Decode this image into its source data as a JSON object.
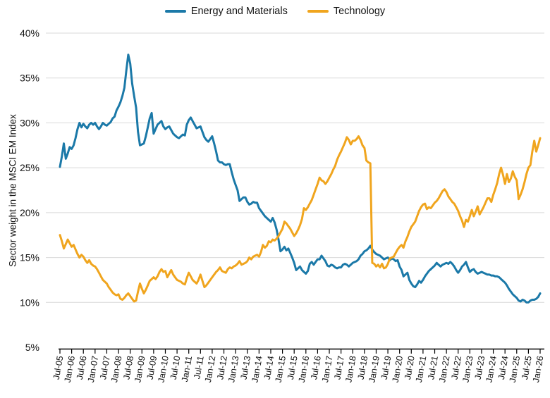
{
  "chart_data": {
    "type": "line",
    "title": "",
    "ylabel": "Sector weight in the MSCI EM Index",
    "ylim": [
      5,
      40
    ],
    "grid": "horizontal-only",
    "legend_position": "top-center",
    "y_tick_labels": [
      "5%",
      "10%",
      "15%",
      "20%",
      "25%",
      "30%",
      "35%",
      "40%"
    ],
    "x_start": "Jul-05",
    "x_end": "Jan-26",
    "x_frequency": "monthly",
    "x_tick_every_months": 6,
    "x_tick_labels": [
      "Jul-05",
      "Jan-06",
      "Jul-06",
      "Jan-07",
      "Jul-07",
      "Jan-08",
      "Jul-08",
      "Jan-09",
      "Jul-09",
      "Jan-10",
      "Jul-10",
      "Jan-11",
      "Jul-11",
      "Jan-12",
      "Jul-12",
      "Jan-13",
      "Jul-13",
      "Jan-14",
      "Jul-14",
      "Jan-15",
      "Jul-15",
      "Jan-16",
      "Jul-16",
      "Jan-17",
      "Jul-17",
      "Jan-18",
      "Jul-18",
      "Jan-19",
      "Jul-19",
      "Jan-20",
      "Jul-20",
      "Jan-21",
      "Jul-21",
      "Jan-22",
      "Jul-22",
      "Jan-23",
      "Jul-23",
      "Jan-24",
      "Jul-24",
      "Jan-25",
      "Jul-25",
      "Jan-26"
    ],
    "series": [
      {
        "name": "Energy and Materials",
        "color": "#1b79a8",
        "values": [
          25.1,
          26.3,
          27.7,
          26.0,
          26.6,
          27.3,
          27.1,
          27.5,
          28.3,
          29.3,
          30.0,
          29.5,
          29.9,
          29.6,
          29.4,
          29.8,
          30.0,
          29.8,
          30.0,
          29.6,
          29.3,
          29.6,
          30.0,
          29.8,
          29.7,
          29.9,
          30.1,
          30.5,
          30.7,
          31.4,
          31.8,
          32.3,
          33.0,
          33.9,
          35.8,
          37.6,
          36.6,
          34.4,
          33.0,
          31.7,
          29.0,
          27.5,
          27.6,
          27.7,
          28.5,
          29.5,
          30.5,
          31.1,
          28.8,
          29.3,
          29.8,
          30.0,
          30.2,
          29.6,
          29.3,
          29.5,
          29.6,
          29.2,
          28.8,
          28.6,
          28.4,
          28.3,
          28.5,
          28.7,
          28.6,
          29.8,
          30.3,
          30.6,
          30.2,
          29.8,
          29.4,
          29.5,
          29.6,
          29.0,
          28.4,
          28.1,
          27.9,
          28.2,
          28.5,
          27.7,
          26.8,
          25.8,
          25.6,
          25.6,
          25.4,
          25.3,
          25.4,
          25.4,
          24.5,
          23.7,
          23.1,
          22.5,
          21.3,
          21.5,
          21.7,
          21.7,
          21.2,
          20.9,
          21.0,
          21.2,
          21.1,
          21.1,
          20.5,
          20.2,
          19.9,
          19.6,
          19.4,
          19.2,
          19.0,
          19.4,
          18.9,
          18.1,
          17.0,
          15.7,
          15.9,
          16.2,
          15.8,
          16.0,
          15.5,
          15.0,
          14.4,
          13.6,
          13.8,
          14.0,
          13.6,
          13.4,
          13.2,
          13.5,
          14.3,
          14.5,
          14.2,
          14.5,
          14.8,
          14.8,
          15.2,
          14.9,
          14.6,
          14.1,
          14.0,
          14.2,
          14.1,
          13.9,
          13.8,
          13.9,
          13.9,
          14.2,
          14.3,
          14.2,
          14.0,
          14.2,
          14.4,
          14.5,
          14.6,
          14.8,
          15.2,
          15.4,
          15.7,
          15.8,
          16.0,
          16.3,
          15.9,
          15.6,
          15.4,
          15.3,
          15.2,
          15.0,
          14.8,
          14.9,
          15.0,
          14.7,
          14.9,
          14.8,
          14.6,
          14.7,
          14.0,
          13.6,
          12.9,
          13.1,
          13.3,
          12.5,
          12.1,
          11.8,
          11.7,
          12.0,
          12.4,
          12.2,
          12.5,
          12.9,
          13.2,
          13.5,
          13.7,
          13.9,
          14.1,
          14.4,
          14.2,
          14.0,
          14.2,
          14.3,
          14.4,
          14.3,
          14.5,
          14.3,
          14.0,
          13.6,
          13.3,
          13.6,
          14.0,
          14.2,
          14.5,
          13.9,
          13.4,
          13.6,
          13.7,
          13.4,
          13.2,
          13.3,
          13.4,
          13.3,
          13.2,
          13.1,
          13.1,
          13.0,
          13.0,
          12.9,
          12.9,
          12.8,
          12.6,
          12.4,
          12.2,
          11.9,
          11.5,
          11.2,
          10.9,
          10.7,
          10.5,
          10.2,
          10.1,
          10.3,
          10.2,
          10.0,
          10.0,
          10.2,
          10.3,
          10.3,
          10.4,
          10.6,
          11.0
        ]
      },
      {
        "name": "Technology",
        "color": "#f0a51e",
        "values": [
          17.5,
          16.8,
          16.0,
          16.5,
          17.0,
          16.6,
          16.2,
          16.4,
          15.9,
          15.4,
          15.0,
          15.3,
          15.1,
          14.7,
          14.4,
          14.7,
          14.3,
          14.1,
          14.0,
          13.7,
          13.3,
          12.9,
          12.5,
          12.3,
          12.1,
          11.7,
          11.4,
          11.1,
          10.9,
          10.8,
          10.9,
          10.4,
          10.3,
          10.5,
          10.8,
          11.0,
          10.7,
          10.4,
          10.1,
          10.2,
          11.2,
          12.1,
          11.5,
          11.0,
          11.4,
          11.9,
          12.4,
          12.6,
          12.8,
          12.6,
          12.9,
          13.4,
          13.7,
          13.4,
          13.5,
          12.8,
          13.2,
          13.6,
          13.1,
          12.8,
          12.5,
          12.4,
          12.3,
          12.1,
          12.0,
          12.7,
          13.3,
          12.9,
          12.5,
          12.3,
          12.1,
          12.5,
          13.1,
          12.4,
          11.7,
          11.9,
          12.2,
          12.5,
          12.8,
          13.1,
          13.4,
          13.6,
          13.9,
          13.5,
          13.4,
          13.3,
          13.7,
          13.9,
          13.8,
          14.0,
          14.1,
          14.3,
          14.6,
          14.2,
          14.3,
          14.4,
          14.6,
          15.0,
          14.8,
          15.1,
          15.2,
          15.3,
          15.1,
          15.6,
          16.4,
          16.1,
          16.3,
          16.8,
          16.7,
          17.0,
          16.9,
          17.1,
          17.4,
          17.8,
          18.2,
          19.0,
          18.8,
          18.5,
          18.2,
          17.8,
          17.4,
          17.7,
          18.1,
          18.6,
          19.3,
          20.5,
          20.3,
          20.6,
          21.0,
          21.4,
          22.0,
          22.6,
          23.2,
          23.9,
          23.6,
          23.5,
          23.2,
          23.5,
          23.9,
          24.3,
          24.8,
          25.2,
          25.9,
          26.4,
          26.8,
          27.3,
          27.8,
          28.4,
          28.1,
          27.6,
          28.0,
          28.0,
          28.2,
          28.5,
          28.1,
          27.5,
          27.2,
          25.8,
          25.6,
          25.5,
          14.4,
          14.3,
          14.0,
          14.2,
          13.9,
          14.3,
          13.8,
          13.9,
          14.3,
          14.9,
          15.0,
          15.1,
          15.5,
          15.9,
          16.2,
          16.4,
          16.1,
          16.8,
          17.3,
          17.9,
          18.4,
          18.7,
          19.0,
          19.6,
          20.2,
          20.6,
          20.9,
          21.0,
          20.4,
          20.6,
          20.5,
          20.8,
          21.1,
          21.3,
          21.6,
          22.0,
          22.4,
          22.6,
          22.3,
          21.8,
          21.5,
          21.2,
          21.0,
          20.6,
          20.2,
          19.6,
          19.1,
          18.4,
          19.2,
          19.0,
          19.6,
          20.3,
          19.6,
          20.1,
          20.7,
          19.8,
          20.2,
          20.6,
          21.1,
          21.6,
          21.6,
          21.2,
          22.0,
          22.6,
          23.3,
          24.3,
          25.0,
          24.2,
          23.2,
          24.3,
          23.4,
          23.8,
          24.6,
          24.0,
          23.6,
          21.5,
          22.0,
          22.6,
          23.4,
          24.3,
          25.0,
          25.3,
          26.8,
          28.0,
          26.8,
          27.5,
          28.3
        ]
      }
    ]
  }
}
